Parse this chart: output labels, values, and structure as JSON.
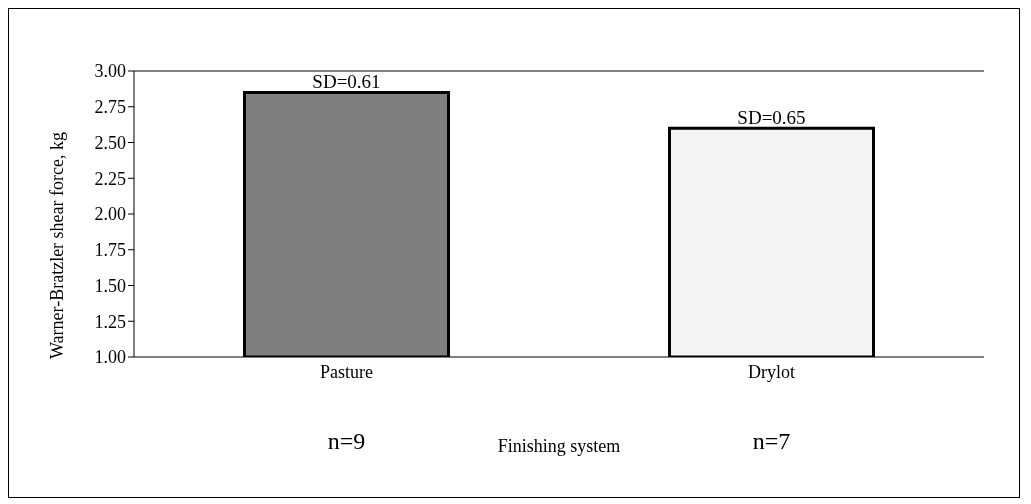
{
  "chart_data": {
    "type": "bar",
    "categories": [
      "Pasture",
      "Drylot"
    ],
    "values": [
      2.85,
      2.6
    ],
    "colors": [
      "#7f7f7f",
      "#f4f4f4"
    ],
    "ylim": [
      1,
      3
    ],
    "yticks": [
      {
        "value": 1,
        "label": "1.00"
      },
      {
        "value": 1.25,
        "label": "1.25"
      },
      {
        "value": 1.5,
        "label": "1.50"
      },
      {
        "value": 1.75,
        "label": "1.75"
      },
      {
        "value": 2,
        "label": "2.00"
      },
      {
        "value": 2.25,
        "label": "2.25"
      },
      {
        "value": 2.5,
        "label": "2.50"
      },
      {
        "value": 2.75,
        "label": "2.75"
      },
      {
        "value": 3,
        "label": "3.00"
      }
    ],
    "xlabel": "Finishing system",
    "ylabel": "Warner-Bratzler shear force, kg",
    "grid": false,
    "annotations": [
      {
        "text": "SD=0.61",
        "x": "Pasture",
        "y": 2.85
      },
      {
        "text": "SD=0.65",
        "x": "Drylot",
        "y": 2.6
      },
      "n=9",
      "n=7"
    ]
  }
}
